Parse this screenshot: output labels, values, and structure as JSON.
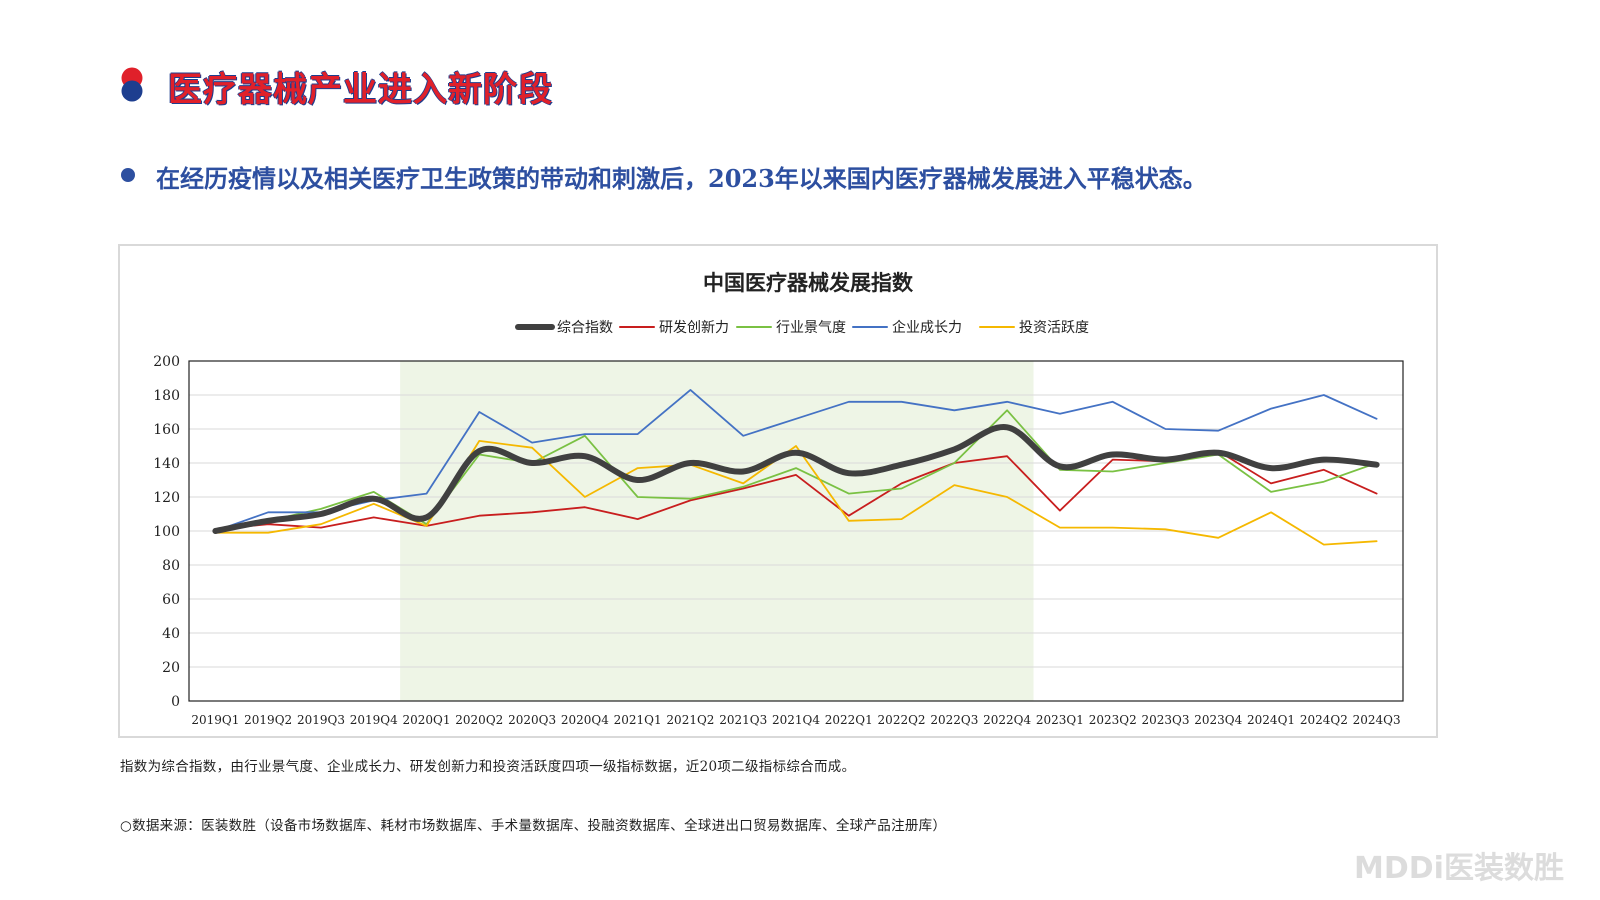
{
  "page": {
    "title": "医疗器械产业进入新阶段",
    "subtitle": "在经历疫情以及相关医疗卫生政策的带动和刺激后，2023年以来国内医疗器械发展进入平稳状态。",
    "note": "指数为综合指数，由行业景气度、企业成长力、研发创新力和投资活跃度四项一级指标数据，近20项二级指标综合而成。",
    "source": "○数据来源：医装数胜（设备市场数据库、耗材市场数据库、手术量数据库、投融资数据库、全球进出口贸易数据库、全球产品注册库）",
    "brand": "MDDi医装数胜",
    "colors": {
      "title": "#e0202a",
      "accent_blue": "#2d4fa0"
    }
  },
  "chart_data": {
    "type": "line",
    "title": "中国医疗器械发展指数",
    "xlabel": "",
    "ylabel": "",
    "ylim": [
      0,
      200
    ],
    "yticks": [
      0,
      20,
      40,
      60,
      80,
      100,
      120,
      140,
      160,
      180,
      200
    ],
    "legend_position": "top-center",
    "grid": true,
    "highlight_range": [
      "2020Q1",
      "2022Q4"
    ],
    "highlight_color": "#eef5e6",
    "categories": [
      "2019Q1",
      "2019Q2",
      "2019Q3",
      "2019Q4",
      "2020Q1",
      "2020Q2",
      "2020Q3",
      "2020Q4",
      "2021Q1",
      "2021Q2",
      "2021Q3",
      "2021Q4",
      "2022Q1",
      "2022Q2",
      "2022Q3",
      "2022Q4",
      "2023Q1",
      "2023Q2",
      "2023Q3",
      "2023Q4",
      "2024Q1",
      "2024Q2",
      "2024Q3"
    ],
    "series": [
      {
        "name": "综合指数",
        "color": "#404040",
        "bold": true,
        "values": [
          100,
          106,
          110,
          119,
          108,
          147,
          140,
          144,
          130,
          140,
          135,
          146,
          134,
          139,
          148,
          161,
          138,
          145,
          142,
          146,
          137,
          142,
          139
        ]
      },
      {
        "name": "研发创新力",
        "color": "#c81e1e",
        "bold": false,
        "values": [
          101,
          104,
          102,
          108,
          103,
          109,
          111,
          114,
          107,
          118,
          125,
          133,
          109,
          128,
          140,
          144,
          112,
          142,
          141,
          147,
          128,
          136,
          122
        ]
      },
      {
        "name": "行业景气度",
        "color": "#7ac143",
        "bold": false,
        "values": [
          100,
          106,
          113,
          123,
          104,
          145,
          140,
          156,
          120,
          119,
          126,
          137,
          122,
          125,
          140,
          171,
          136,
          135,
          140,
          145,
          123,
          129,
          140
        ]
      },
      {
        "name": "企业成长力",
        "color": "#4472c4",
        "bold": false,
        "values": [
          100,
          111,
          111,
          118,
          122,
          170,
          152,
          157,
          157,
          183,
          156,
          166,
          176,
          176,
          171,
          176,
          169,
          176,
          160,
          159,
          172,
          180,
          166
        ]
      },
      {
        "name": "投资活跃度",
        "color": "#f5b800",
        "bold": false,
        "values": [
          99,
          99,
          104,
          116,
          103,
          153,
          149,
          120,
          137,
          139,
          128,
          150,
          106,
          107,
          127,
          120,
          102,
          102,
          101,
          96,
          111,
          92,
          94
        ]
      }
    ]
  }
}
